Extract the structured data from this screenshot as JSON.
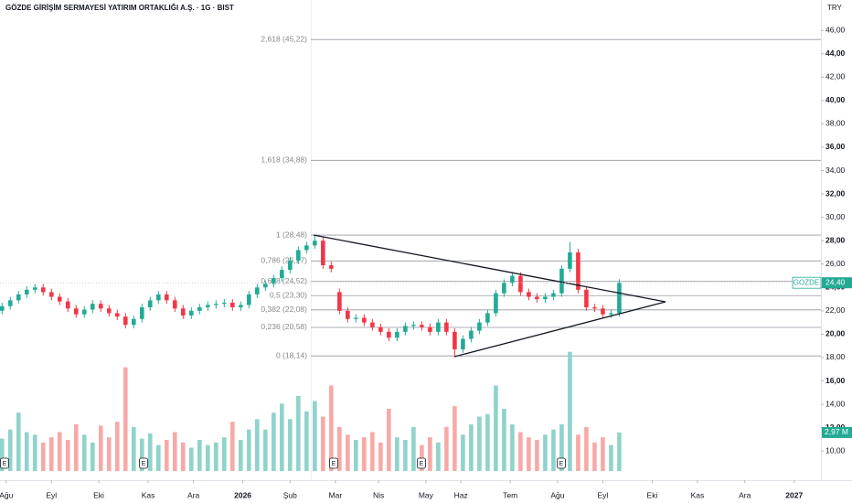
{
  "chart_data": {
    "type": "candlestick",
    "title": "GÖZDE GİRİŞİM SERMAYESİ YATIRIM ORTAKLIĞI A.Ş. · 1G · BIST",
    "currency": "TRY",
    "up_color": "#22ab94",
    "down_color": "#f23645",
    "volume_up_color": "#8fd3c9",
    "volume_down_color": "#f7a9a7",
    "x": [
      -2,
      2,
      6,
      10,
      14,
      18,
      22,
      26,
      30,
      34,
      38,
      42,
      46,
      50,
      54,
      58,
      62,
      66,
      70,
      74,
      78,
      82,
      86,
      90,
      94,
      98,
      102,
      106,
      110,
      114,
      118,
      122,
      126,
      130,
      134,
      138,
      142,
      146,
      150,
      154,
      158,
      162,
      166,
      170,
      174,
      178,
      182,
      186,
      190,
      194,
      198,
      202,
      206,
      210,
      214,
      218,
      222,
      226,
      230,
      234,
      238,
      242,
      246,
      250,
      254,
      258,
      262,
      266,
      270,
      274,
      278,
      282,
      286,
      290,
      294,
      298
    ],
    "open": [
      22.0,
      22.4,
      22.9,
      23.4,
      23.8,
      24.0,
      23.6,
      23.2,
      22.8,
      22.2,
      21.7,
      22.1,
      22.6,
      22.2,
      21.8,
      21.5,
      20.8,
      21.3,
      22.3,
      22.9,
      23.4,
      22.9,
      22.2,
      21.6,
      22.0,
      22.3,
      22.5,
      22.6,
      22.7,
      22.3,
      22.5,
      23.4,
      24.0,
      24.3,
      24.8,
      25.5,
      26.3,
      27.2,
      27.6,
      28.0,
      25.9,
      23.6,
      22.0,
      21.3,
      21.4,
      21.0,
      20.6,
      20.2,
      19.7,
      20.2,
      20.7,
      20.8,
      20.6,
      20.2,
      21.0,
      20.2,
      18.7,
      19.6,
      20.3,
      21.0,
      21.8,
      23.5,
      24.4,
      25.0,
      23.6,
      23.2,
      23.0,
      23.2,
      23.5,
      25.6,
      27.0,
      23.8,
      22.3,
      22.2,
      21.7,
      21.8
    ],
    "high": [
      22.7,
      23.2,
      23.7,
      24.1,
      24.3,
      24.3,
      23.9,
      23.5,
      23.1,
      22.5,
      22.4,
      22.9,
      22.9,
      22.5,
      22.1,
      21.8,
      21.6,
      22.6,
      23.2,
      23.7,
      23.7,
      23.2,
      22.5,
      22.3,
      22.6,
      22.8,
      22.9,
      23.0,
      23.0,
      22.8,
      23.7,
      24.3,
      24.6,
      25.1,
      25.8,
      26.6,
      27.5,
      27.9,
      28.5,
      28.3,
      26.2,
      23.9,
      22.3,
      21.7,
      21.7,
      21.3,
      20.9,
      20.5,
      20.5,
      21.0,
      21.1,
      21.1,
      20.9,
      21.3,
      21.3,
      20.5,
      19.9,
      20.6,
      21.3,
      22.1,
      23.8,
      24.7,
      25.3,
      25.3,
      23.9,
      23.5,
      23.5,
      23.8,
      25.9,
      27.9,
      27.3,
      24.1,
      22.6,
      22.5,
      22.1,
      24.7
    ],
    "low": [
      21.7,
      22.1,
      22.6,
      23.1,
      23.5,
      23.3,
      22.9,
      22.5,
      21.9,
      21.4,
      21.4,
      21.8,
      21.9,
      21.5,
      21.2,
      20.5,
      20.5,
      21.0,
      22.0,
      22.6,
      22.6,
      21.9,
      21.3,
      21.3,
      21.7,
      22.0,
      22.2,
      22.3,
      22.0,
      22.0,
      22.2,
      23.1,
      23.7,
      24.0,
      24.5,
      25.2,
      26.0,
      26.9,
      27.3,
      25.6,
      25.3,
      21.7,
      21.0,
      21.0,
      20.7,
      20.3,
      19.9,
      19.4,
      19.4,
      19.9,
      20.4,
      20.3,
      19.9,
      19.9,
      19.9,
      18.1,
      18.4,
      19.3,
      20.0,
      20.7,
      21.5,
      23.2,
      24.1,
      23.3,
      22.9,
      22.7,
      22.7,
      22.9,
      23.2,
      25.3,
      23.5,
      22.0,
      21.9,
      21.4,
      21.4,
      21.5
    ],
    "close": [
      22.4,
      22.9,
      23.4,
      23.8,
      24.0,
      23.6,
      23.2,
      22.8,
      22.2,
      21.7,
      22.1,
      22.6,
      22.2,
      21.8,
      21.5,
      20.8,
      21.3,
      22.3,
      22.9,
      23.4,
      22.9,
      22.2,
      21.6,
      22.0,
      22.3,
      22.5,
      22.6,
      22.7,
      22.3,
      22.5,
      23.4,
      24.0,
      24.3,
      24.8,
      25.5,
      26.3,
      27.2,
      27.6,
      28.0,
      25.9,
      25.6,
      22.0,
      21.3,
      21.4,
      21.0,
      20.6,
      20.2,
      19.7,
      20.2,
      20.7,
      20.8,
      20.6,
      20.2,
      21.0,
      20.2,
      18.7,
      19.6,
      20.3,
      21.0,
      21.8,
      23.5,
      24.4,
      25.0,
      23.6,
      23.2,
      23.0,
      23.2,
      23.5,
      25.6,
      27.0,
      23.8,
      22.3,
      22.2,
      21.7,
      21.8,
      24.4
    ],
    "volume": [
      2.5,
      3.2,
      4.5,
      3.0,
      2.8,
      2.2,
      2.6,
      3.0,
      2.4,
      3.6,
      2.8,
      2.2,
      3.5,
      2.6,
      3.8,
      8.0,
      3.4,
      2.5,
      2.9,
      2.0,
      2.4,
      3.0,
      2.2,
      1.8,
      2.4,
      2.0,
      2.2,
      2.6,
      3.8,
      2.4,
      3.2,
      4.0,
      3.2,
      4.5,
      5.2,
      4.0,
      5.8,
      4.6,
      5.4,
      4.2,
      6.6,
      3.4,
      2.8,
      2.4,
      2.6,
      3.0,
      2.2,
      4.8,
      2.6,
      2.4,
      3.4,
      2.0,
      2.6,
      2.2,
      3.4,
      5.0,
      2.8,
      3.6,
      4.2,
      4.4,
      6.6,
      4.8,
      3.6,
      3.0,
      2.6,
      2.4,
      2.8,
      3.2,
      3.6,
      9.2,
      2.8,
      3.4,
      2.2,
      2.6,
      2.0,
      2.97
    ],
    "volume_last_label": "2,97 M",
    "volume_lim": [
      0,
      9.6
    ],
    "xlim": [
      -3,
      396
    ],
    "ylim": [
      7.9,
      48.6
    ],
    "xticks": [
      {
        "value": 0,
        "label": "Ağu"
      },
      {
        "value": 22,
        "label": "Eyl"
      },
      {
        "value": 45,
        "label": "Eki"
      },
      {
        "value": 69,
        "label": "Kas"
      },
      {
        "value": 91,
        "label": "Ara"
      },
      {
        "value": 115,
        "label": "2026"
      },
      {
        "value": 138,
        "label": "Şub"
      },
      {
        "value": 160,
        "label": "Mar"
      },
      {
        "value": 181,
        "label": "Nis"
      },
      {
        "value": 204,
        "label": "May"
      },
      {
        "value": 221,
        "label": "Haz"
      },
      {
        "value": 245,
        "label": "Tem"
      },
      {
        "value": 268,
        "label": "Ağu"
      },
      {
        "value": 290,
        "label": "Eyl"
      },
      {
        "value": 314,
        "label": "Eki"
      },
      {
        "value": 336,
        "label": "Kas"
      },
      {
        "value": 359,
        "label": "Ara"
      },
      {
        "value": 383,
        "label": "2027"
      }
    ],
    "yticks": [
      {
        "value": 10,
        "label": "10,00"
      },
      {
        "value": 12,
        "label": "12,00"
      },
      {
        "value": 14,
        "label": "14,00"
      },
      {
        "value": 16,
        "label": "16,00"
      },
      {
        "value": 18,
        "label": "18,00"
      },
      {
        "value": 20,
        "label": "20,00"
      },
      {
        "value": 22,
        "label": "22,00"
      },
      {
        "value": 24,
        "label": "24,00"
      },
      {
        "value": 26,
        "label": "26,00"
      },
      {
        "value": 28,
        "label": "28,00"
      },
      {
        "value": 30,
        "label": "30,00"
      },
      {
        "value": 32,
        "label": "32,00"
      },
      {
        "value": 34,
        "label": "34,00"
      },
      {
        "value": 36,
        "label": "36,00"
      },
      {
        "value": 38,
        "label": "38,00"
      },
      {
        "value": 40,
        "label": "40,00"
      },
      {
        "value": 42,
        "label": "42,00"
      },
      {
        "value": 44,
        "label": "44,00"
      },
      {
        "value": 46,
        "label": "46,00"
      }
    ],
    "fib_levels": [
      {
        "label": "2,618 (45,22)",
        "value": 45.22
      },
      {
        "label": "1,618 (34,88)",
        "value": 34.88
      },
      {
        "label": "1 (28,48)",
        "value": 28.48
      },
      {
        "label": "0,786 (26,27)",
        "value": 26.27
      },
      {
        "label": "0,618 (24,52)",
        "value": 24.52
      },
      {
        "label": "0,5 (23,30)",
        "value": 23.3
      },
      {
        "label": "0,382 (22,08)",
        "value": 22.08
      },
      {
        "label": "0,236 (20,58)",
        "value": 20.58
      },
      {
        "label": "0 (18,14)",
        "value": 18.14
      }
    ],
    "last_price": {
      "symbol": "GOZDE",
      "value": 24.4,
      "label": "24,40"
    },
    "event_marker": "E"
  }
}
